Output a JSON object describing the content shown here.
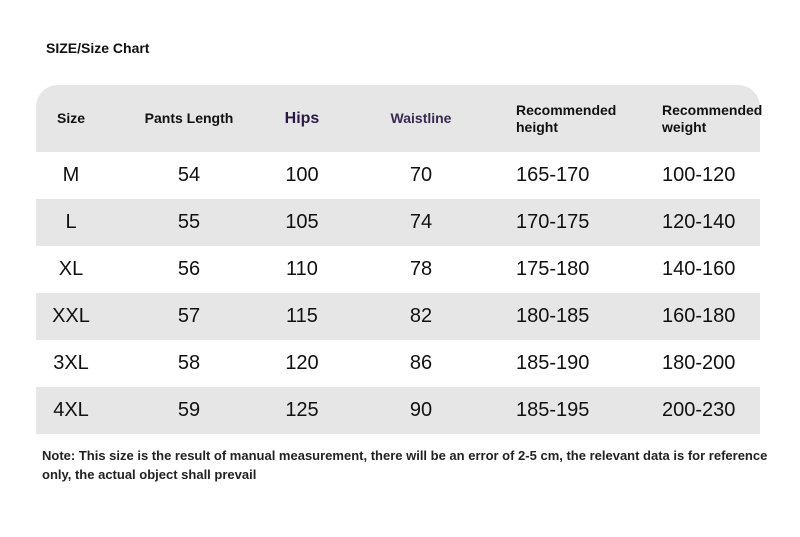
{
  "title": "SIZE/Size Chart",
  "headers": [
    "Size",
    "Pants Length",
    "Hips",
    "Waistline",
    "Recommended height",
    "Recommended weight"
  ],
  "rows": [
    [
      "M",
      "54",
      "100",
      "70",
      "165-170",
      "100-120"
    ],
    [
      "L",
      "55",
      "105",
      "74",
      "170-175",
      "120-140"
    ],
    [
      "XL",
      "56",
      "110",
      "78",
      "175-180",
      "140-160"
    ],
    [
      "XXL",
      "57",
      "115",
      "82",
      "180-185",
      "160-180"
    ],
    [
      "3XL",
      "58",
      "120",
      "86",
      "185-190",
      "180-200"
    ],
    [
      "4XL",
      "59",
      "125",
      "90",
      "185-195",
      "200-230"
    ]
  ],
  "note": "Note: This size is the result of manual measurement, there will be an error of 2-5 cm, the relevant data is for reference only, the actual object shall prevail"
}
